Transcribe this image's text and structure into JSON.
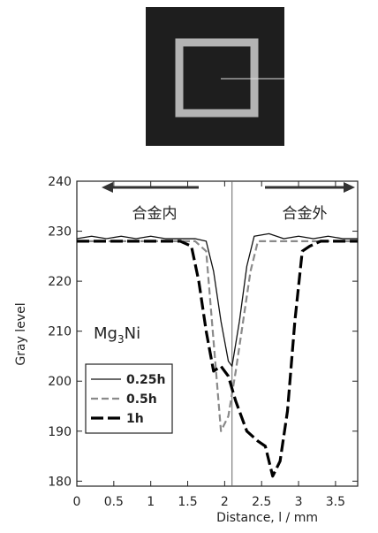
{
  "chart_data": {
    "type": "line",
    "annotations": {
      "inside": "合金内",
      "outside": "合金外"
    },
    "compound": {
      "base": "Mg",
      "subscript": "3",
      "rest": "Ni"
    },
    "xlabel": "Distance, l / mm",
    "ylabel": "Gray level",
    "xlim": [
      0,
      3.8
    ],
    "ylim": [
      179,
      240
    ],
    "xticks": [
      0,
      0.5,
      1,
      1.5,
      2,
      2.5,
      3,
      3.5
    ],
    "yticks": [
      180,
      190,
      200,
      210,
      220,
      230,
      240
    ],
    "marker_x": 2.1,
    "legend": "lower left",
    "series": [
      {
        "name": "0.25h",
        "color": "#111111",
        "linestyle": "solid",
        "linewidth": 1.3,
        "x": [
          0,
          0.2,
          0.4,
          0.6,
          0.8,
          1.0,
          1.2,
          1.4,
          1.6,
          1.75,
          1.85,
          1.95,
          2.05,
          2.1,
          2.2,
          2.3,
          2.4,
          2.6,
          2.8,
          3.0,
          3.2,
          3.4,
          3.6,
          3.8
        ],
        "values": [
          228.5,
          229,
          228.5,
          229,
          228.5,
          229,
          228.5,
          228.5,
          228.5,
          228,
          222,
          212,
          204,
          203,
          212,
          223,
          229,
          229.5,
          228.5,
          229,
          228.5,
          229,
          228.5,
          228.5
        ]
      },
      {
        "name": "0.5h",
        "color": "#8a8a8a",
        "linestyle": "dashed",
        "linewidth": 2.2,
        "x": [
          0,
          0.2,
          0.4,
          0.6,
          0.8,
          1.0,
          1.2,
          1.4,
          1.6,
          1.75,
          1.85,
          1.95,
          2.05,
          2.15,
          2.25,
          2.35,
          2.45,
          2.6,
          2.8,
          3.0,
          3.2,
          3.4,
          3.6,
          3.8
        ],
        "values": [
          228,
          228,
          228,
          228,
          228,
          228,
          228,
          228,
          228,
          226,
          208,
          190,
          193,
          202,
          212,
          222,
          228,
          228,
          228,
          228,
          228,
          228,
          228,
          228
        ]
      },
      {
        "name": "1h",
        "color": "#000000",
        "linestyle": "dashed",
        "linewidth": 3.2,
        "x": [
          0,
          0.2,
          0.4,
          0.6,
          0.8,
          1.0,
          1.2,
          1.4,
          1.55,
          1.65,
          1.75,
          1.85,
          1.95,
          2.05,
          2.15,
          2.3,
          2.45,
          2.55,
          2.65,
          2.75,
          2.85,
          2.95,
          3.05,
          3.15,
          3.3,
          3.5,
          3.8
        ],
        "values": [
          228,
          228,
          228,
          228,
          228,
          228,
          228,
          228,
          227,
          220,
          210,
          202,
          203,
          201,
          196,
          190,
          188,
          187,
          181,
          184,
          194,
          212,
          226,
          227,
          228,
          228,
          228
        ]
      }
    ]
  }
}
